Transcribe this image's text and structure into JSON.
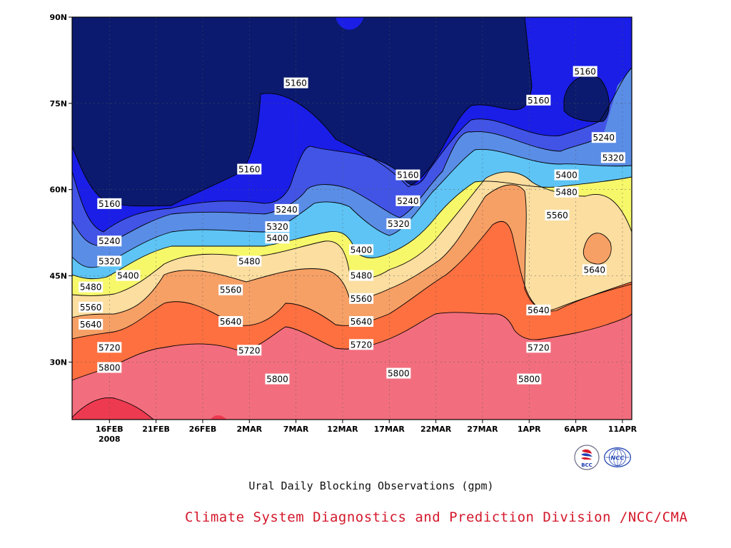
{
  "chart_data": {
    "type": "contour",
    "xlabel": "Ural Daily Blocking Observations (gpm)",
    "x_ticks": [
      "16FEB",
      "21FEB",
      "26FEB",
      "2MAR",
      "7MAR",
      "12MAR",
      "17MAR",
      "22MAR",
      "27MAR",
      "1APR",
      "6APR",
      "11APR"
    ],
    "x_tick_year": "2008",
    "y_ticks": [
      "90N",
      "75N",
      "60N",
      "45N",
      "30N"
    ],
    "y_tick_values": [
      90,
      75,
      60,
      45,
      30
    ],
    "x_range": [
      "2008-02-12",
      "2008-04-12"
    ],
    "y_range": [
      20,
      90
    ],
    "grid": true,
    "levels": [
      5160,
      5240,
      5320,
      5400,
      5480,
      5560,
      5640,
      5720,
      5800
    ],
    "fill_colors": [
      "#0b1a6e",
      "#1a1ee6",
      "#4254e6",
      "#5a8de6",
      "#5ec4f5",
      "#f7f76a",
      "#fbdea0",
      "#f6a066",
      "#ff7040",
      "#f26e7e",
      "#ee3a50"
    ],
    "contour_labels": [
      {
        "text": "5160",
        "date": "2008-02-16",
        "lat": 57.5
      },
      {
        "text": "5240",
        "date": "2008-02-16",
        "lat": 51.0
      },
      {
        "text": "5320",
        "date": "2008-02-16",
        "lat": 47.5
      },
      {
        "text": "5400",
        "date": "2008-02-18",
        "lat": 45.0
      },
      {
        "text": "5480",
        "date": "2008-02-14",
        "lat": 43.0
      },
      {
        "text": "5560",
        "date": "2008-02-14",
        "lat": 39.5
      },
      {
        "text": "5640",
        "date": "2008-02-14",
        "lat": 36.5
      },
      {
        "text": "5720",
        "date": "2008-02-16",
        "lat": 32.5
      },
      {
        "text": "5800",
        "date": "2008-02-16",
        "lat": 29.0
      },
      {
        "text": "5160",
        "date": "2008-03-07",
        "lat": 78.5
      },
      {
        "text": "5160",
        "date": "2008-03-02",
        "lat": 63.5
      },
      {
        "text": "5240",
        "date": "2008-03-06",
        "lat": 56.5
      },
      {
        "text": "5320",
        "date": "2008-03-05",
        "lat": 53.5
      },
      {
        "text": "5400",
        "date": "2008-03-05",
        "lat": 51.5
      },
      {
        "text": "5480",
        "date": "2008-03-02",
        "lat": 47.5
      },
      {
        "text": "5560",
        "date": "2008-02-29",
        "lat": 42.5
      },
      {
        "text": "5640",
        "date": "2008-02-29",
        "lat": 37.0
      },
      {
        "text": "5720",
        "date": "2008-03-02",
        "lat": 32.0
      },
      {
        "text": "5800",
        "date": "2008-03-05",
        "lat": 27.0
      },
      {
        "text": "5400",
        "date": "2008-03-14",
        "lat": 49.5
      },
      {
        "text": "5480",
        "date": "2008-03-14",
        "lat": 45.0
      },
      {
        "text": "5560",
        "date": "2008-03-14",
        "lat": 41.0
      },
      {
        "text": "5640",
        "date": "2008-03-14",
        "lat": 37.0
      },
      {
        "text": "5720",
        "date": "2008-03-14",
        "lat": 33.0
      },
      {
        "text": "5160",
        "date": "2008-03-19",
        "lat": 62.5
      },
      {
        "text": "5240",
        "date": "2008-03-19",
        "lat": 58.0
      },
      {
        "text": "5320",
        "date": "2008-03-18",
        "lat": 54.0
      },
      {
        "text": "5800",
        "date": "2008-03-18",
        "lat": 28.0
      },
      {
        "text": "5160",
        "date": "2008-04-02",
        "lat": 75.5
      },
      {
        "text": "5160",
        "date": "2008-04-07",
        "lat": 80.5
      },
      {
        "text": "5240",
        "date": "2008-04-09",
        "lat": 69.0
      },
      {
        "text": "5320",
        "date": "2008-04-10",
        "lat": 65.5
      },
      {
        "text": "5400",
        "date": "2008-04-05",
        "lat": 62.5
      },
      {
        "text": "5480",
        "date": "2008-04-05",
        "lat": 59.5
      },
      {
        "text": "5560",
        "date": "2008-04-04",
        "lat": 55.5
      },
      {
        "text": "5640",
        "date": "2008-04-08",
        "lat": 46.0
      },
      {
        "text": "5640",
        "date": "2008-04-02",
        "lat": 39.0
      },
      {
        "text": "5720",
        "date": "2008-04-02",
        "lat": 32.5
      },
      {
        "text": "5800",
        "date": "2008-04-01",
        "lat": 27.0
      }
    ]
  },
  "footer": {
    "credit": "Climate System Diagnostics and Prediction Division /NCC/CMA",
    "logos": [
      "BCC",
      "NCC"
    ]
  }
}
